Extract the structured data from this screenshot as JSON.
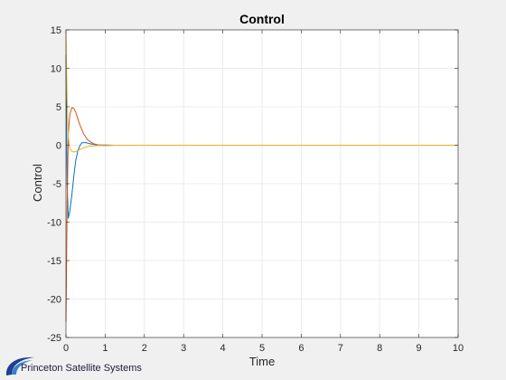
{
  "chart_data": {
    "type": "line",
    "title": "Control",
    "xlabel": "Time",
    "ylabel": "Control",
    "xlim": [
      0,
      10
    ],
    "ylim": [
      -25,
      15
    ],
    "xticks": [
      "0",
      "1",
      "2",
      "3",
      "4",
      "5",
      "6",
      "7",
      "8",
      "9",
      "10"
    ],
    "yticks": [
      "15",
      "10",
      "5",
      "0",
      "-5",
      "-10",
      "-15",
      "-20",
      "-25"
    ],
    "grid": true,
    "legend": "none",
    "series": [
      {
        "color": "#0072bd",
        "x": [
          0,
          0.03,
          0.06,
          0.1,
          0.15,
          0.2,
          0.25,
          0.3,
          0.35,
          0.4,
          0.5,
          0.6,
          0.8,
          1.0,
          1.2,
          1.5,
          2,
          3,
          5,
          10
        ],
        "y": [
          11.8,
          -5,
          -9.5,
          -8.5,
          -6.5,
          -4.0,
          -2.0,
          -0.8,
          -0.1,
          0.3,
          0.35,
          0.2,
          0.05,
          0.02,
          0,
          0,
          0,
          0,
          0,
          0
        ]
      },
      {
        "color": "#d95319",
        "x": [
          0,
          0.03,
          0.06,
          0.1,
          0.15,
          0.2,
          0.25,
          0.3,
          0.35,
          0.45,
          0.55,
          0.7,
          0.85,
          1.0,
          1.3,
          1.6,
          2,
          3,
          5,
          10
        ],
        "y": [
          -23,
          -8,
          1.5,
          4.0,
          4.9,
          4.8,
          4.3,
          3.5,
          2.7,
          1.5,
          0.7,
          0.2,
          0,
          -0.05,
          0,
          0,
          0,
          0,
          0,
          0
        ]
      },
      {
        "color": "#edb120",
        "x": [
          0,
          0.03,
          0.06,
          0.1,
          0.15,
          0.2,
          0.3,
          0.4,
          0.5,
          0.6,
          0.8,
          1.0,
          1.3,
          1.6,
          2,
          3,
          5,
          10
        ],
        "y": [
          14.5,
          6,
          1.0,
          -0.4,
          -0.8,
          -0.9,
          -0.7,
          -0.45,
          -0.25,
          -0.15,
          -0.05,
          -0.02,
          0,
          0,
          0,
          0,
          0,
          0
        ]
      }
    ]
  },
  "logo": {
    "text": "Princeton Satellite Systems",
    "colors": [
      "#1f3f8f",
      "#3a7fd0"
    ]
  }
}
